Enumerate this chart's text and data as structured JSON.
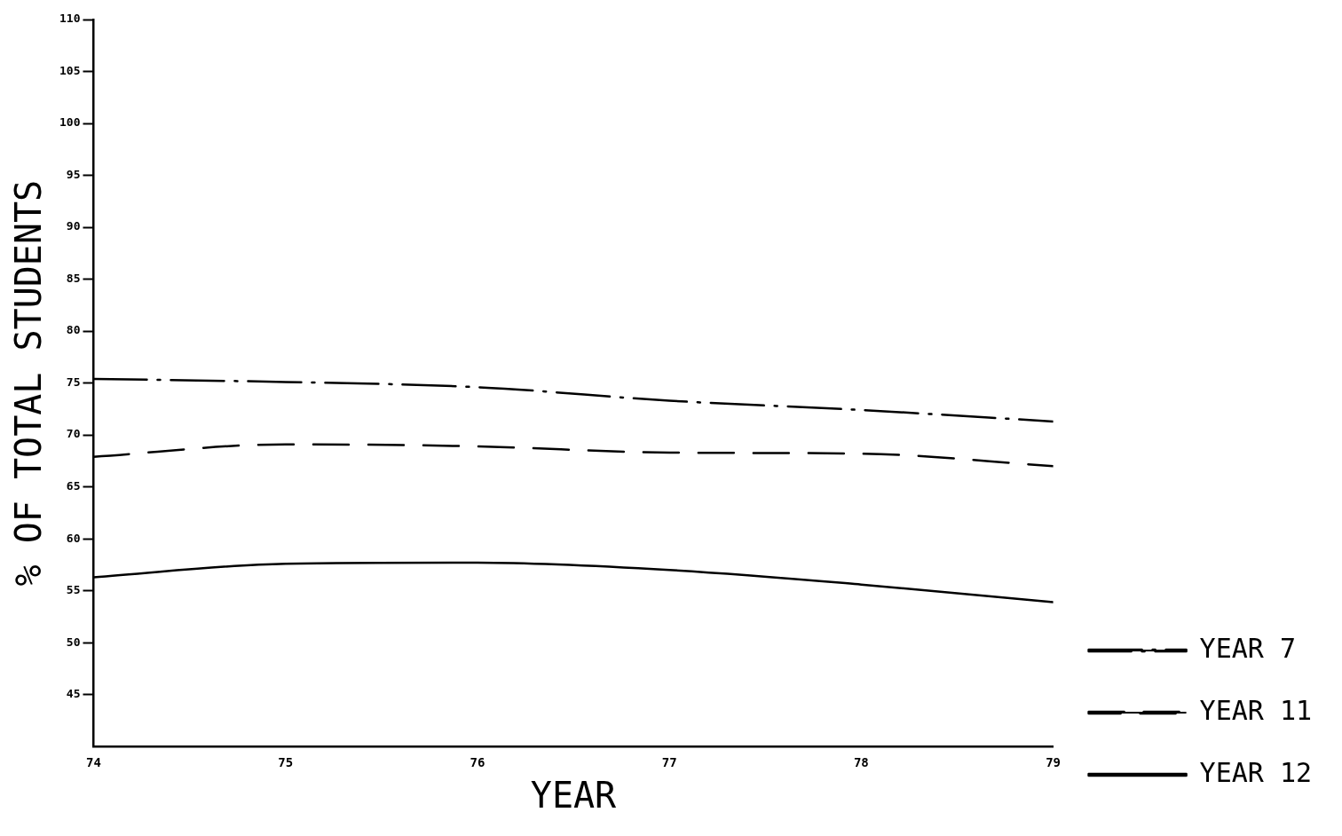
{
  "chart_data": {
    "type": "line",
    "xlabel": "YEAR",
    "ylabel": "% OF TOTAL STUDENTS",
    "x": [
      74,
      75,
      76,
      77,
      78,
      79
    ],
    "series": [
      {
        "name": "YEAR 7",
        "color": "#000000",
        "line_style": "dashdot",
        "values": [
          75.4,
          75.1,
          74.6,
          73.3,
          72.4,
          71.3
        ]
      },
      {
        "name": "YEAR 11",
        "color": "#000000",
        "line_style": "dashed",
        "values": [
          67.9,
          69.1,
          68.9,
          68.3,
          68.2,
          67.0
        ]
      },
      {
        "name": "YEAR 12",
        "color": "#000000",
        "line_style": "solid",
        "values": [
          56.3,
          57.6,
          57.7,
          57.0,
          55.6,
          53.9
        ]
      }
    ],
    "xlim": [
      74,
      79
    ],
    "xticks": [
      74,
      75,
      76,
      77,
      78,
      79
    ],
    "ylim": [
      40,
      110
    ],
    "yticks": [
      45,
      50,
      55,
      60,
      65,
      70,
      75,
      80,
      85,
      90,
      95,
      100,
      105,
      110
    ],
    "grid": false,
    "legend": "right",
    "marker": "none"
  }
}
